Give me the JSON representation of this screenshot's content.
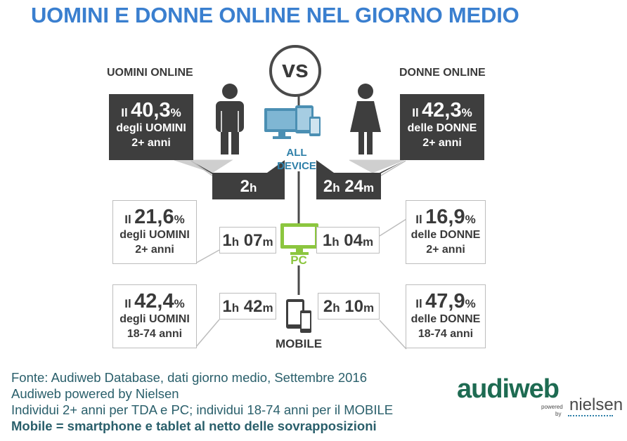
{
  "title": "UOMINI E DONNE ONLINE NEL GIORNO MEDIO",
  "men_header": "UOMINI ONLINE",
  "women_header": "DONNE ONLINE",
  "vs_label": "vs",
  "devices": {
    "all": {
      "line1": "ALL",
      "line2": "DEVICE",
      "color": "#2e7fa8"
    },
    "pc": {
      "label": "PC",
      "color": "#8cc63f"
    },
    "mobile": {
      "label": "MOBILE",
      "color": "#3a3a3a"
    }
  },
  "men": {
    "all": {
      "prefix": "Il",
      "value": "40,3",
      "unit": "%",
      "line2": "degli UOMINI",
      "line3": "2+ anni",
      "time_h": "2",
      "time_h_unit": "h"
    },
    "pc": {
      "prefix": "Il",
      "value": "21,6",
      "unit": "%",
      "line2": "degli UOMINI",
      "line3": "2+ anni",
      "time_h": "1",
      "time_h_unit": "h",
      "time_m": "07",
      "time_m_unit": "m"
    },
    "mobile": {
      "prefix": "Il",
      "value": "42,4",
      "unit": "%",
      "line2": "degli UOMINI",
      "line3": "18-74 anni",
      "time_h": "1",
      "time_h_unit": "h",
      "time_m": "42",
      "time_m_unit": "m"
    }
  },
  "women": {
    "all": {
      "prefix": "Il",
      "value": "42,3",
      "unit": "%",
      "line2": "delle DONNE",
      "line3": "2+ anni",
      "time_h": "2",
      "time_h_unit": "h",
      "time_m": "24",
      "time_m_unit": "m"
    },
    "pc": {
      "prefix": "Il",
      "value": "16,9",
      "unit": "%",
      "line2": "delle DONNE",
      "line3": "2+ anni",
      "time_h": "1",
      "time_h_unit": "h",
      "time_m": "04",
      "time_m_unit": "m"
    },
    "mobile": {
      "prefix": "Il",
      "value": "47,9",
      "unit": "%",
      "line2": "delle DONNE",
      "line3": "18-74 anni",
      "time_h": "2",
      "time_h_unit": "h",
      "time_m": "10",
      "time_m_unit": "m"
    }
  },
  "footer": {
    "line1": "Fonte: Audiweb Database, dati giorno medio, Settembre 2016",
    "line2": "Audiweb powered by Nielsen",
    "line3": "Individui 2+ anni per TDA e PC; individui 18-74 anni per il MOBILE",
    "line4": "Mobile = smartphone e tablet al netto delle sovrapposizioni"
  },
  "logo": {
    "main": "audiweb",
    "powered": "powered",
    "by": "by",
    "brand": "nielsen",
    "main_color": "#1e6b52",
    "dot_color": "#2e7fa8",
    "brand_color": "#4a4a4a"
  },
  "colors": {
    "title": "#3a7fcf",
    "dark_box": "#3e3e3e",
    "light_border": "#bdbdbd",
    "text": "#3a3a3a",
    "footer": "#2a5f6b"
  }
}
